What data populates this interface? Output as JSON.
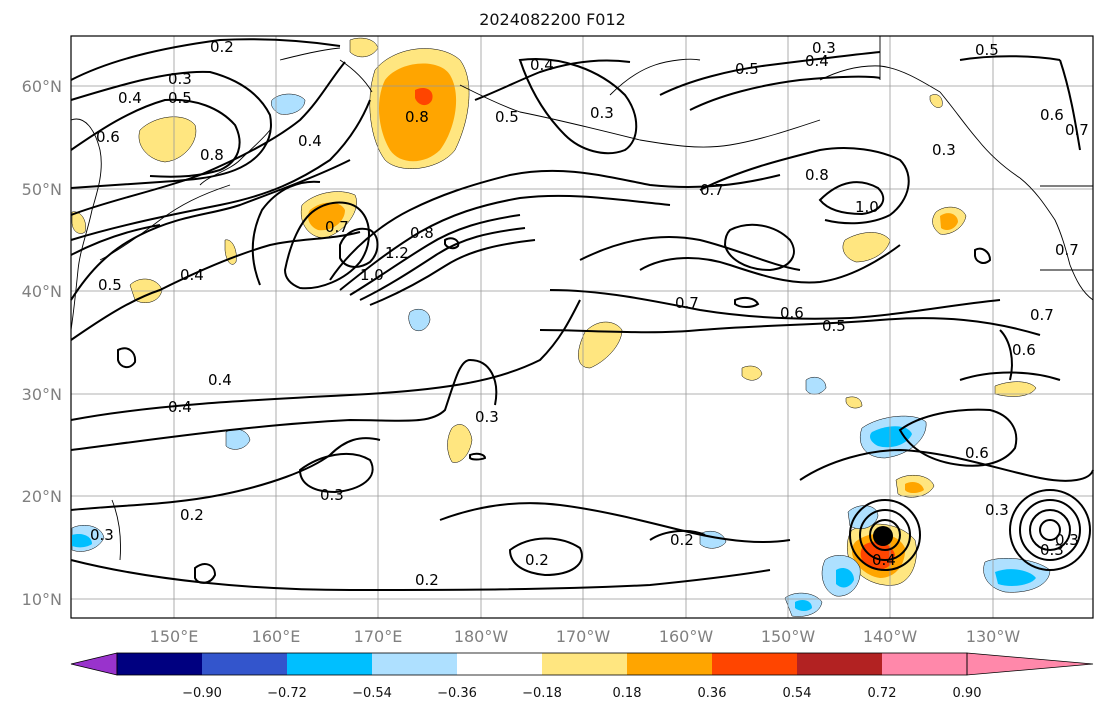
{
  "title": "2024082200 F012",
  "map": {
    "lon_range": [
      "140°E",
      "125°W"
    ],
    "lat_range": [
      "8°N",
      "65°N"
    ],
    "lat_labels": [
      "60°N",
      "50°N",
      "40°N",
      "30°N",
      "20°N",
      "10°N"
    ],
    "lon_labels": [
      "150°E",
      "160°E",
      "170°E",
      "180°W",
      "170°W",
      "160°W",
      "150°W",
      "140°W",
      "130°W"
    ],
    "contour_labels": [
      "0.2",
      "0.3",
      "0.4",
      "0.5",
      "0.6",
      "0.8",
      "0.4",
      "0.5",
      "0.3",
      "0.5",
      "0.4",
      "0.4",
      "0.3",
      "0.6",
      "0.7",
      "0.5",
      "0.8",
      "0.7",
      "1.0",
      "0.8",
      "0.7",
      "0.5",
      "0.4",
      "0.4",
      "0.4",
      "0.7",
      "1.0",
      "1.2",
      "0.8",
      "0.7",
      "0.6",
      "0.5",
      "0.6",
      "0.7",
      "0.3",
      "0.6",
      "0.3",
      "0.3",
      "0.3",
      "0.2",
      "0.2",
      "0.2",
      "0.2",
      "0.3",
      "0.3",
      "0.4",
      "0.3"
    ]
  },
  "colorbar": {
    "ticks": [
      "−0.90",
      "−0.72",
      "−0.54",
      "−0.36",
      "−0.18",
      "0.18",
      "0.36",
      "0.54",
      "0.72",
      "0.90"
    ],
    "colors": [
      "#9933cc",
      "#000080",
      "#3355cc",
      "#00bfff",
      "#aee0ff",
      "#ffffff",
      "#ffe680",
      "#ffa500",
      "#ff4500",
      "#b22222",
      "#ff88aa"
    ]
  }
}
